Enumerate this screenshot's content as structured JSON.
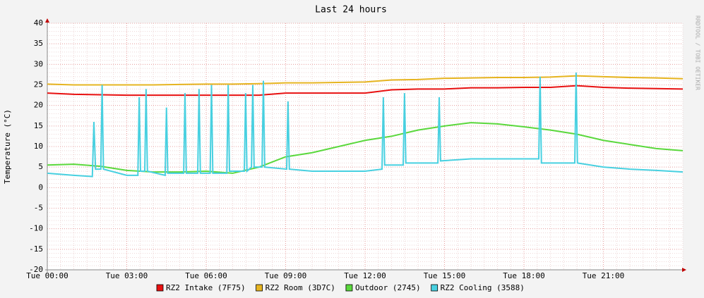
{
  "chart_data": {
    "type": "line",
    "title": "Last 24 hours",
    "y_label": "Temperature (°C)",
    "watermark": "RRDTOOL / TOBI OETIKER",
    "x": [
      0,
      1,
      2,
      3,
      4,
      5,
      6,
      7,
      8,
      9,
      10,
      11,
      12,
      13,
      14,
      15,
      16,
      17,
      18,
      19,
      20,
      21,
      22,
      23,
      24
    ],
    "xlim": [
      0,
      24
    ],
    "xticks": [
      {
        "value": 0,
        "label": "Tue 00:00"
      },
      {
        "value": 3,
        "label": "Tue 03:00"
      },
      {
        "value": 6,
        "label": "Tue 06:00"
      },
      {
        "value": 9,
        "label": "Tue 09:00"
      },
      {
        "value": 12,
        "label": "Tue 12:00"
      },
      {
        "value": 15,
        "label": "Tue 15:00"
      },
      {
        "value": 18,
        "label": "Tue 18:00"
      },
      {
        "value": 21,
        "label": "Tue 21:00"
      }
    ],
    "ylim": [
      -20,
      40
    ],
    "yticks": [
      40,
      35,
      30,
      25,
      20,
      15,
      10,
      5,
      0,
      -5,
      -10,
      -15,
      -20
    ],
    "grid": true,
    "series": [
      {
        "name": "RZ2 Intake (7F75)",
        "color": "#e81010",
        "values": [
          23,
          22.7,
          22.6,
          22.5,
          22.5,
          22.5,
          22.5,
          22.5,
          22.5,
          23,
          23,
          23,
          23,
          23.8,
          24,
          24,
          24.3,
          24.3,
          24.4,
          24.4,
          24.8,
          24.4,
          24.2,
          24.1,
          24
        ]
      },
      {
        "name": "RZ2 Room (3D7C)",
        "color": "#e6b420",
        "values": [
          25.2,
          25,
          25,
          25,
          25,
          25.1,
          25.2,
          25.2,
          25.3,
          25.5,
          25.5,
          25.6,
          25.7,
          26.2,
          26.3,
          26.6,
          26.7,
          26.8,
          26.8,
          26.9,
          27.2,
          27,
          26.8,
          26.7,
          26.5
        ]
      },
      {
        "name": "Outdoor (2745)",
        "color": "#5ad83c",
        "values": [
          5.5,
          5.7,
          5.2,
          4.2,
          3.8,
          3.8,
          4,
          3.5,
          5,
          7.5,
          8.5,
          10,
          11.5,
          12.5,
          14,
          15,
          15.8,
          15.5,
          14.8,
          14,
          13,
          11.5,
          10.5,
          9.5,
          9
        ]
      },
      {
        "name": "RZ2 Cooling (3588)",
        "color": "#48d0e0",
        "x": [
          0,
          1,
          1.7,
          1.76,
          1.82,
          2.02,
          2.07,
          2.12,
          3,
          3.42,
          3.47,
          3.52,
          3.68,
          3.73,
          3.78,
          4.45,
          4.5,
          4.55,
          5.15,
          5.2,
          5.25,
          5.68,
          5.73,
          5.78,
          6.15,
          6.2,
          6.25,
          6.78,
          6.83,
          6.88,
          7.44,
          7.49,
          7.54,
          7.71,
          7.76,
          7.81,
          8.11,
          8.16,
          8.21,
          9.04,
          9.09,
          9.14,
          10,
          12,
          12.64,
          12.69,
          12.74,
          13.44,
          13.49,
          13.54,
          14.75,
          14.8,
          14.85,
          16,
          18,
          18.56,
          18.61,
          18.66,
          19.92,
          19.97,
          20.02,
          21,
          22,
          23,
          24
        ],
        "values": [
          3.5,
          3,
          2.7,
          16,
          4.5,
          4.5,
          25,
          4.5,
          3,
          3,
          22,
          4,
          4,
          24,
          4,
          3,
          19.5,
          3.5,
          3.5,
          23,
          3.5,
          3.5,
          24,
          3.5,
          3.5,
          25,
          3.5,
          3.5,
          25,
          4,
          4,
          23,
          4,
          5,
          25,
          5,
          5,
          26,
          5,
          4.5,
          21,
          4.5,
          4,
          4,
          4.5,
          22,
          5.5,
          5.5,
          23,
          6,
          6,
          22,
          6.5,
          7,
          7,
          7,
          27,
          6,
          6,
          28,
          6,
          5,
          4.5,
          4.2,
          3.8
        ]
      }
    ]
  }
}
